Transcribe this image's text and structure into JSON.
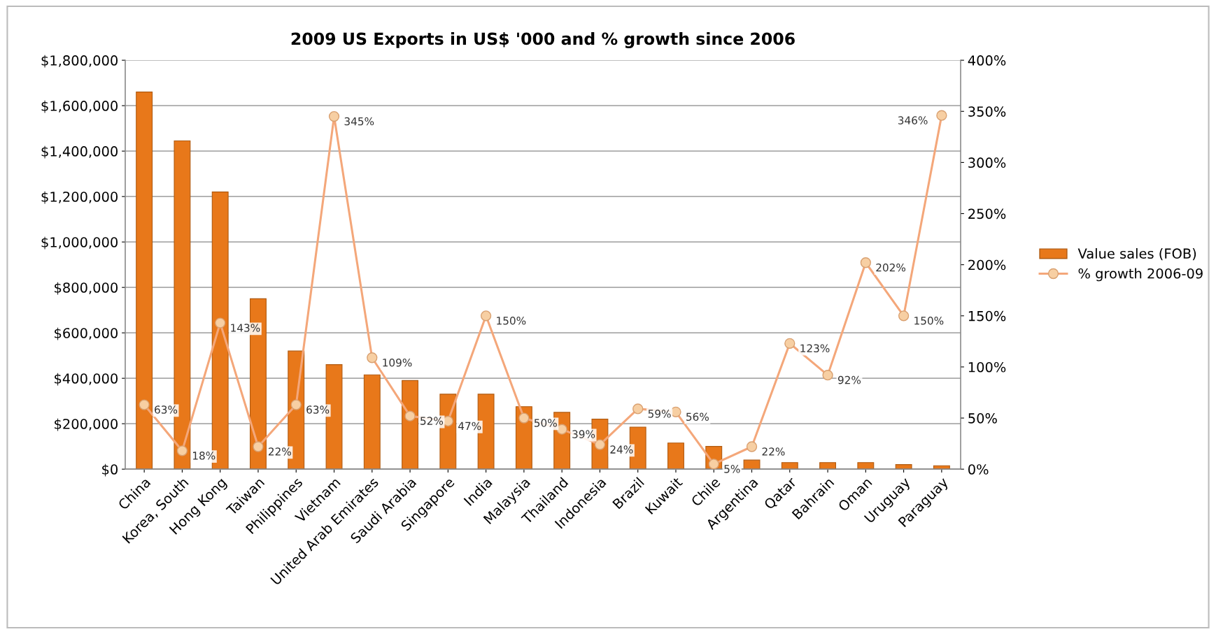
{
  "chart_data": {
    "type": "bar",
    "title": "2009 US Exports in US$ '000 and % growth since 2006",
    "categories": [
      "China",
      "Korea, South",
      "Hong Kong",
      "Taiwan",
      "Philippines",
      "Vietnam",
      "United Arab Emirates",
      "Saudi Arabia",
      "Singapore",
      "India",
      "Malaysia",
      "Thailand",
      "Indonesia",
      "Brazil",
      "Kuwait",
      "Chile",
      "Argentina",
      "Qatar",
      "Bahrain",
      "Oman",
      "Uruguay",
      "Paraguay"
    ],
    "series": [
      {
        "name": "Value sales (FOB)",
        "color": "#e8781a",
        "values": [
          1660000,
          1445000,
          1220000,
          750000,
          520000,
          460000,
          415000,
          390000,
          330000,
          330000,
          275000,
          250000,
          220000,
          185000,
          115000,
          100000,
          40000,
          29000,
          29000,
          29000,
          20000,
          15000
        ]
      },
      {
        "name": "% growth 2006-09",
        "type": "line",
        "axis": "y2",
        "color": "#f4a77a",
        "marker": "circle",
        "values": [
          63,
          18,
          143,
          22,
          63,
          345,
          109,
          52,
          47,
          150,
          50,
          39,
          24,
          59,
          56,
          5,
          22,
          123,
          92,
          202,
          150,
          346
        ],
        "value_labels": [
          "63%",
          "18%",
          "143%",
          "22%",
          "63%",
          "345%",
          "109%",
          "52%",
          "47%",
          "150%",
          "50%",
          "39%",
          "24%",
          "59%",
          "56%",
          "5%",
          "22%",
          "123%",
          "92%",
          "202%",
          "150%",
          "346%"
        ]
      }
    ],
    "ylim": [
      0,
      1800000
    ],
    "yticks": [
      {
        "value": 0,
        "label": "$0"
      },
      {
        "value": 200000,
        "label": "$200,000"
      },
      {
        "value": 400000,
        "label": "$400,000"
      },
      {
        "value": 600000,
        "label": "$600,000"
      },
      {
        "value": 800000,
        "label": "$800,000"
      },
      {
        "value": 1000000,
        "label": "$1,000,000"
      },
      {
        "value": 1200000,
        "label": "$1,200,000"
      },
      {
        "value": 1400000,
        "label": "$1,400,000"
      },
      {
        "value": 1600000,
        "label": "$1,600,000"
      },
      {
        "value": 1800000,
        "label": "$1,800,000"
      }
    ],
    "y2lim": [
      0,
      400
    ],
    "y2ticks": [
      {
        "value": 0,
        "label": "0%"
      },
      {
        "value": 50,
        "label": "50%"
      },
      {
        "value": 100,
        "label": "100%"
      },
      {
        "value": 150,
        "label": "150%"
      },
      {
        "value": 200,
        "label": "200%"
      },
      {
        "value": 250,
        "label": "250%"
      },
      {
        "value": 300,
        "label": "300%"
      },
      {
        "value": 350,
        "label": "350%"
      },
      {
        "value": 400,
        "label": "400%"
      }
    ],
    "grid": "y",
    "legend": "right"
  }
}
